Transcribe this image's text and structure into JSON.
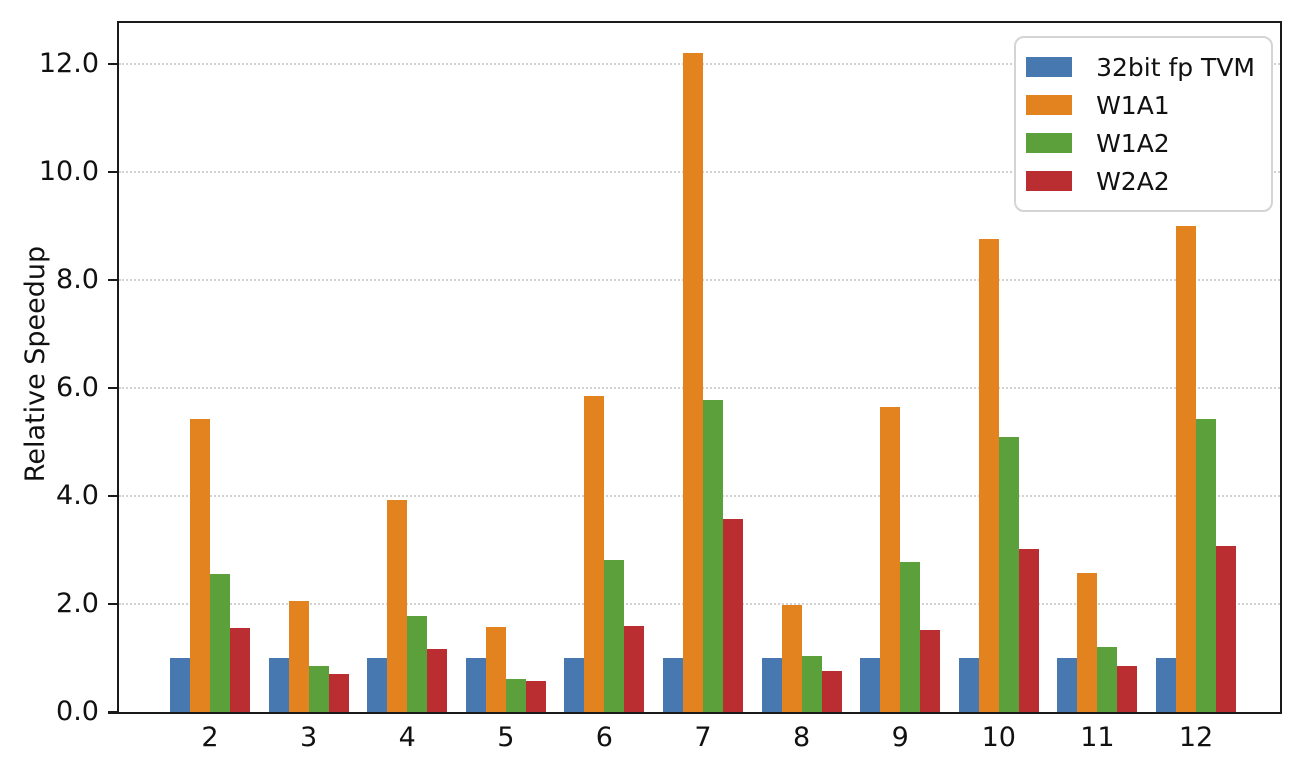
{
  "figure": {
    "background_color": "#ffffff"
  },
  "chart_data": {
    "type": "bar",
    "title": "",
    "xlabel": "",
    "ylabel": "Relative Speedup",
    "categories": [
      "2",
      "3",
      "4",
      "5",
      "6",
      "7",
      "8",
      "9",
      "10",
      "11",
      "12"
    ],
    "series": [
      {
        "name": "32bit fp TVM",
        "color": "#4878B0",
        "values": [
          1.0,
          1.0,
          1.0,
          1.0,
          1.0,
          1.0,
          1.0,
          1.0,
          1.0,
          1.0,
          1.0
        ]
      },
      {
        "name": "W1A1",
        "color": "#E28320",
        "values": [
          5.42,
          2.05,
          3.92,
          1.57,
          5.84,
          12.2,
          1.98,
          5.64,
          8.76,
          2.57,
          9.0
        ]
      },
      {
        "name": "W1A2",
        "color": "#5CA03C",
        "values": [
          2.56,
          0.85,
          1.77,
          0.62,
          2.82,
          5.78,
          1.04,
          2.78,
          5.08,
          1.2,
          5.43
        ]
      },
      {
        "name": "W2A2",
        "color": "#BA2D30",
        "values": [
          1.56,
          0.7,
          1.17,
          0.57,
          1.6,
          3.57,
          0.75,
          1.51,
          3.02,
          0.85,
          3.08
        ]
      }
    ],
    "ylim": [
      0,
      12.75
    ],
    "yticks": [
      0,
      2,
      4,
      6,
      8,
      10,
      12
    ],
    "ytick_labels": [
      "0.0",
      "2.0",
      "4.0",
      "6.0",
      "8.0",
      "10.0",
      "12.0"
    ],
    "grid": {
      "axis": "y",
      "style": "dotted",
      "color": "#d2d2d2"
    },
    "legend": {
      "position": "upper right"
    }
  }
}
